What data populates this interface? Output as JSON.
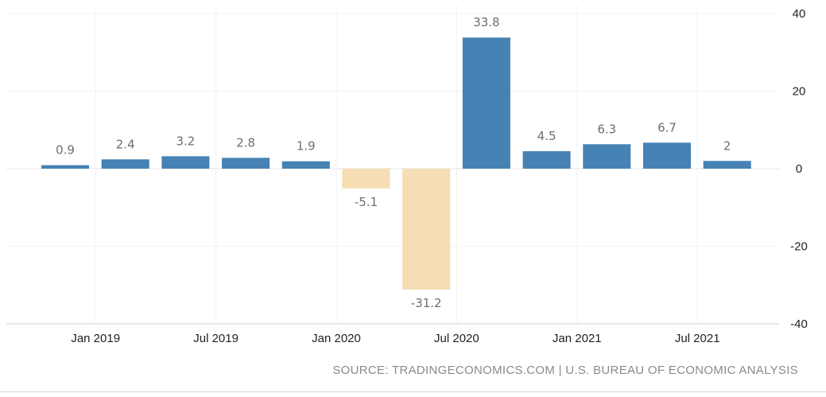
{
  "chart_data": {
    "type": "bar",
    "categories": [
      "2018 Q4",
      "2019 Q1",
      "2019 Q2",
      "2019 Q3",
      "2019 Q4",
      "2020 Q1",
      "2020 Q2",
      "2020 Q3",
      "2020 Q4",
      "2021 Q1",
      "2021 Q2",
      "2021 Q3"
    ],
    "values": [
      0.9,
      2.4,
      3.2,
      2.8,
      1.9,
      -5.1,
      -31.2,
      33.8,
      4.5,
      6.3,
      6.7,
      2
    ],
    "value_labels": [
      "0.9",
      "2.4",
      "3.2",
      "2.8",
      "1.9",
      "-5.1",
      "-31.2",
      "33.8",
      "4.5",
      "6.3",
      "6.7",
      "2"
    ],
    "x_tick_labels": [
      "Jan 2019",
      "Jul 2019",
      "Jan 2020",
      "Jul 2020",
      "Jan 2021",
      "Jul 2021"
    ],
    "y_ticks": [
      40,
      20,
      0,
      -20,
      -40
    ],
    "ylim": [
      -40,
      40
    ],
    "y_axis_side": "right",
    "grid": true,
    "colors": {
      "positive": "#4682b4",
      "negative": "#f5deb3",
      "grid": "#e6e6e6",
      "label": "#6d6d6d",
      "tick": "#222222"
    },
    "title": "",
    "xlabel": "",
    "ylabel": ""
  },
  "source_text": "SOURCE: TRADINGECONOMICS.COM | U.S. BUREAU OF ECONOMIC ANALYSIS"
}
